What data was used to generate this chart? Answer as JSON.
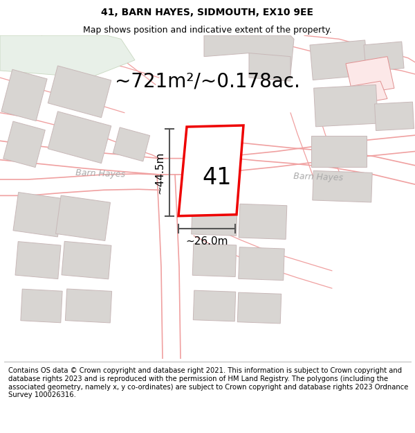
{
  "title_line1": "41, BARN HAYES, SIDMOUTH, EX10 9EE",
  "title_line2": "Map shows position and indicative extent of the property.",
  "area_label": "~721m²/~0.178ac.",
  "number_label": "41",
  "dim_vertical": "~44.5m",
  "dim_horizontal": "~26.0m",
  "road_label1": "Barn Hayes",
  "road_label2": "Barn Hayes",
  "footer_text": "Contains OS data © Crown copyright and database right 2021. This information is subject to Crown copyright and database rights 2023 and is reproduced with the permission of HM Land Registry. The polygons (including the associated geometry, namely x, y co-ordinates) are subject to Crown copyright and database rights 2023 Ordnance Survey 100026316.",
  "map_bg": "#ffffff",
  "road_line_color": "#f0a0a0",
  "plot_color": "#ee0000",
  "plot_fill": "#ffffff",
  "building_face": "#d8d5d2",
  "building_edge": "#c8b8b8",
  "green_color": "#e8f0e8",
  "green_edge": "#c8d8c0",
  "dim_color": "#555555",
  "road_text_color": "#aaaaaa",
  "title_fontsize": 10,
  "subtitle_fontsize": 9,
  "area_fontsize": 20,
  "number_fontsize": 24,
  "dim_fontsize": 11,
  "road_fontsize": 9,
  "footer_fontsize": 7.2
}
